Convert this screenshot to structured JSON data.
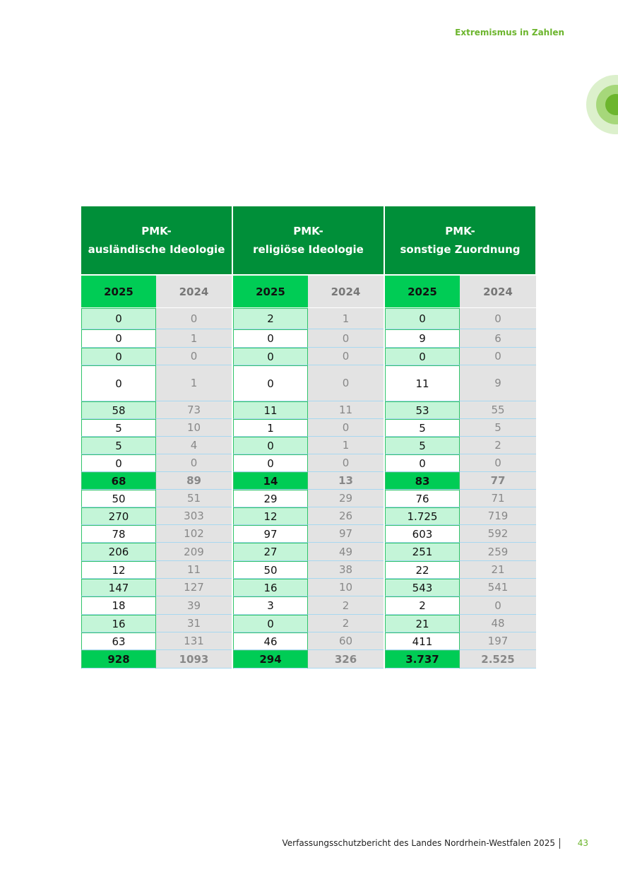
{
  "header": {
    "title": "Extremismus in Zahlen"
  },
  "table": {
    "groups": [
      {
        "lines": [
          "PMK-",
          "ausländische Ideologie"
        ],
        "years": [
          "2025",
          "2024"
        ]
      },
      {
        "lines": [
          "PMK-",
          "religiöse Ideologie"
        ],
        "years": [
          "2025",
          "2024"
        ]
      },
      {
        "lines": [
          "PMK-",
          "sonstige Zuordnung"
        ],
        "years": [
          "2025",
          "2024"
        ]
      }
    ],
    "rows": [
      [
        "0",
        "0",
        "2",
        "1",
        "0",
        "0"
      ],
      [
        "0",
        "1",
        "0",
        "0",
        "9",
        "6"
      ],
      [
        "0",
        "0",
        "0",
        "0",
        "0",
        "0"
      ],
      [
        "0",
        "1",
        "0",
        "0",
        "11",
        "9"
      ],
      [
        "58",
        "73",
        "11",
        "11",
        "53",
        "55"
      ],
      [
        "5",
        "10",
        "1",
        "0",
        "5",
        "5"
      ],
      [
        "5",
        "4",
        "0",
        "1",
        "5",
        "2"
      ],
      [
        "0",
        "0",
        "0",
        "0",
        "0",
        "0"
      ],
      [
        "68",
        "89",
        "14",
        "13",
        "83",
        "77"
      ],
      [
        "50",
        "51",
        "29",
        "29",
        "76",
        "71"
      ],
      [
        "270",
        "303",
        "12",
        "26",
        "1.725",
        "719"
      ],
      [
        "78",
        "102",
        "97",
        "97",
        "603",
        "592"
      ],
      [
        "206",
        "209",
        "27",
        "49",
        "251",
        "259"
      ],
      [
        "12",
        "11",
        "50",
        "38",
        "22",
        "21"
      ],
      [
        "147",
        "127",
        "16",
        "10",
        "543",
        "541"
      ],
      [
        "18",
        "39",
        "3",
        "2",
        "2",
        "0"
      ],
      [
        "16",
        "31",
        "0",
        "2",
        "21",
        "48"
      ],
      [
        "63",
        "131",
        "46",
        "60",
        "411",
        "197"
      ],
      [
        "928",
        "1093",
        "294",
        "326",
        "3.737",
        "2.525"
      ]
    ]
  },
  "footer": {
    "text": "Verfassungsschutzbericht des Landes Nordrhein-Westfalen 2025",
    "page": "43"
  }
}
